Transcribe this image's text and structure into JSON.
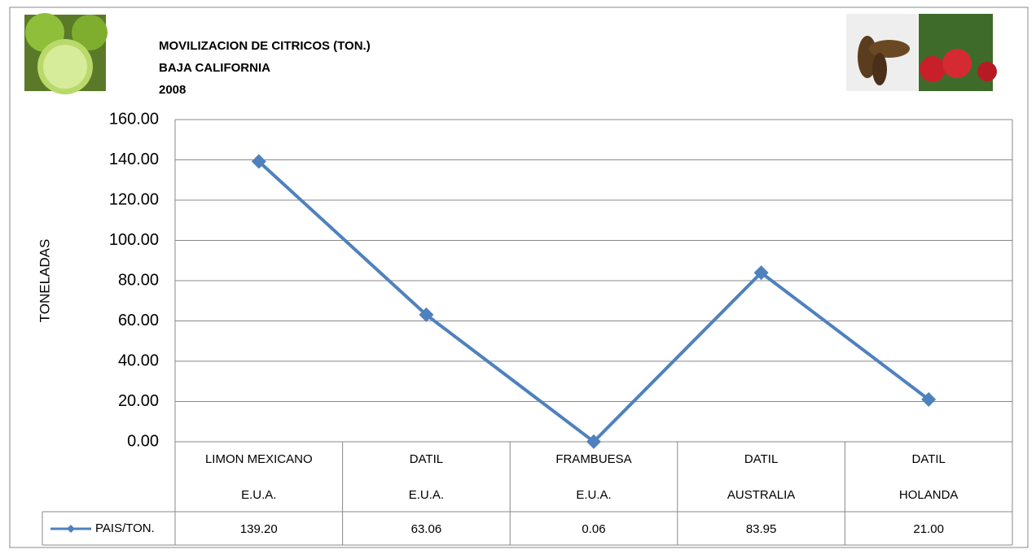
{
  "chart_data": {
    "type": "line",
    "title": [
      "MOVILIZACION DE CITRICOS (TON.)",
      "BAJA CALIFORNIA",
      "2008"
    ],
    "y_label": "TONELADAS",
    "categories": [
      [
        "LIMON MEXICANO",
        "E.U.A."
      ],
      [
        "DATIL",
        "E.U.A."
      ],
      [
        "FRAMBUESA",
        "E.U.A."
      ],
      [
        "DATIL",
        "AUSTRALIA"
      ],
      [
        "DATIL",
        "HOLANDA"
      ]
    ],
    "series": [
      {
        "name": "PAIS/TON.",
        "color": "#4f81bd",
        "values": [
          139.2,
          63.06,
          0.06,
          83.95,
          21.0
        ],
        "value_labels": [
          "139.20",
          "63.06",
          "0.06",
          "83.95",
          "21.00"
        ]
      }
    ],
    "ylim": [
      0,
      160
    ],
    "yticks": [
      {
        "value": 0,
        "label": "0.00"
      },
      {
        "value": 20,
        "label": "20.00"
      },
      {
        "value": 40,
        "label": "40.00"
      },
      {
        "value": 60,
        "label": "60.00"
      },
      {
        "value": 80,
        "label": "80.00"
      },
      {
        "value": 100,
        "label": "100.00"
      },
      {
        "value": 120,
        "label": "120.00"
      },
      {
        "value": 140,
        "label": "140.00"
      },
      {
        "value": 160,
        "label": "160.00"
      }
    ],
    "grid": true
  }
}
